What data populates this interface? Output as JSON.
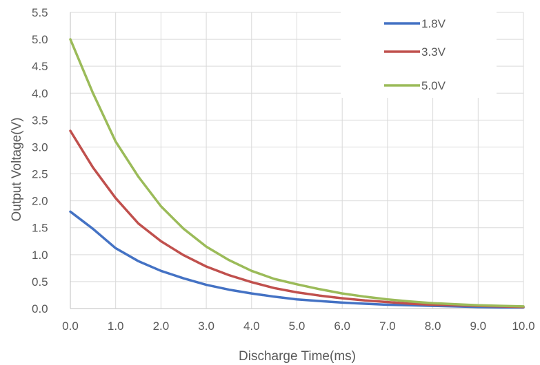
{
  "chart_data": {
    "type": "line",
    "title": "",
    "xlabel": "Discharge Time(ms)",
    "ylabel": "Output Voltage(V)",
    "xlim": [
      0,
      10
    ],
    "ylim": [
      0,
      5.5
    ],
    "x_ticks": [
      "0.0",
      "1.0",
      "2.0",
      "3.0",
      "4.0",
      "5.0",
      "6.0",
      "7.0",
      "8.0",
      "9.0",
      "10.0"
    ],
    "y_ticks": [
      "0.0",
      "0.5",
      "1.0",
      "1.5",
      "2.0",
      "2.5",
      "3.0",
      "3.5",
      "4.0",
      "4.5",
      "5.0",
      "5.5"
    ],
    "grid": "vertical and horizontal major gridlines",
    "legend_position": "top-right",
    "x": [
      0,
      0.5,
      1,
      1.5,
      2,
      2.5,
      3,
      3.5,
      4,
      4.5,
      5,
      5.5,
      6,
      6.5,
      7,
      7.5,
      8,
      8.5,
      9,
      9.5,
      10
    ],
    "series": [
      {
        "name": "1.8V",
        "color": "#4472c4",
        "values": [
          1.8,
          1.48,
          1.12,
          0.88,
          0.7,
          0.56,
          0.44,
          0.35,
          0.28,
          0.22,
          0.17,
          0.14,
          0.11,
          0.09,
          0.07,
          0.06,
          0.05,
          0.04,
          0.03,
          0.02,
          0.02
        ]
      },
      {
        "name": "3.3V",
        "color": "#c0504d",
        "values": [
          3.3,
          2.62,
          2.05,
          1.58,
          1.25,
          0.99,
          0.78,
          0.62,
          0.49,
          0.38,
          0.3,
          0.24,
          0.19,
          0.15,
          0.12,
          0.09,
          0.07,
          0.06,
          0.05,
          0.04,
          0.03
        ]
      },
      {
        "name": "5.0V",
        "color": "#9bbb59",
        "values": [
          5.0,
          4.0,
          3.1,
          2.45,
          1.9,
          1.48,
          1.15,
          0.9,
          0.7,
          0.55,
          0.45,
          0.36,
          0.28,
          0.22,
          0.17,
          0.13,
          0.1,
          0.08,
          0.06,
          0.05,
          0.04
        ]
      }
    ]
  }
}
